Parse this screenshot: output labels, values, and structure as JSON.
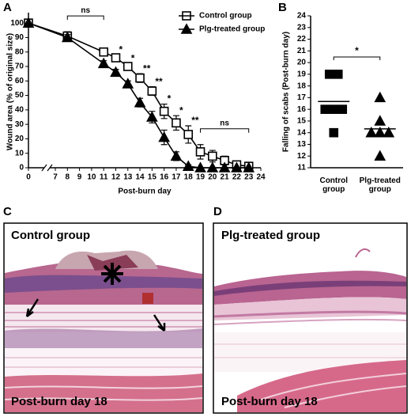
{
  "chart_data": [
    {
      "type": "line",
      "panel": "A",
      "xlabel": "Post-burn day",
      "ylabel": "Wound area (% of original size)",
      "x": [
        0,
        8,
        11,
        12,
        13,
        14,
        15,
        16,
        17,
        18,
        19,
        20,
        21,
        22,
        23
      ],
      "series": [
        {
          "name": "Control group",
          "marker": "square",
          "color": "#000000",
          "values": [
            100,
            91,
            80,
            76,
            70,
            62,
            53,
            39,
            31,
            23,
            11,
            8,
            5,
            2,
            1
          ],
          "errors": [
            null,
            3,
            2,
            2,
            2,
            3,
            3,
            5,
            5,
            6,
            5,
            4,
            3,
            1,
            1
          ]
        },
        {
          "name": "Plg-treated group",
          "marker": "triangle",
          "color": "#000000",
          "values": [
            100,
            90,
            72,
            66,
            58,
            45,
            35,
            21,
            8,
            1,
            0,
            0,
            0,
            0,
            0
          ],
          "errors": [
            null,
            2,
            2,
            2,
            2,
            3,
            4,
            5,
            3,
            1,
            null,
            null,
            null,
            null,
            null
          ]
        }
      ],
      "annotations": [
        {
          "text": "ns",
          "x": [
            8,
            11
          ]
        },
        {
          "text": "*",
          "x": 12
        },
        {
          "text": "*",
          "x": 13
        },
        {
          "text": "**",
          "x": 14
        },
        {
          "text": "**",
          "x": 15
        },
        {
          "text": "*",
          "x": 16
        },
        {
          "text": "*",
          "x": 17
        },
        {
          "text": "**",
          "x": 18
        },
        {
          "text": "ns",
          "x": [
            19,
            23
          ]
        }
      ],
      "xticks": [
        0,
        7,
        8,
        9,
        10,
        11,
        12,
        13,
        14,
        15,
        16,
        17,
        18,
        19,
        20,
        21,
        22,
        23,
        24
      ],
      "ylim": [
        0,
        105
      ],
      "yticks": [
        0,
        10,
        20,
        30,
        40,
        50,
        60,
        70,
        80,
        90,
        100
      ],
      "legend": "top-right"
    },
    {
      "type": "scatter",
      "panel": "B",
      "ylabel": "Falling of scabs (Post-burn day)",
      "categories": [
        "Control group",
        "Plg-treated group"
      ],
      "markers": [
        "square",
        "triangle"
      ],
      "color": "#000000",
      "values": [
        [
          19,
          19,
          16,
          16,
          16,
          14
        ],
        [
          17,
          15,
          14,
          14,
          14,
          12
        ]
      ],
      "means": [
        16.67,
        14.33
      ],
      "annotations": [
        {
          "text": "*"
        }
      ],
      "ylim": [
        11,
        24
      ],
      "yticks": [
        11,
        12,
        13,
        14,
        15,
        16,
        17,
        18,
        19,
        20,
        21,
        22,
        23,
        24
      ]
    }
  ],
  "images": [
    {
      "panel": "C",
      "title": "Control group",
      "caption": "Post-burn day 18"
    },
    {
      "panel": "D",
      "title": "Plg-treated group",
      "caption": "Post-burn day 18"
    }
  ]
}
